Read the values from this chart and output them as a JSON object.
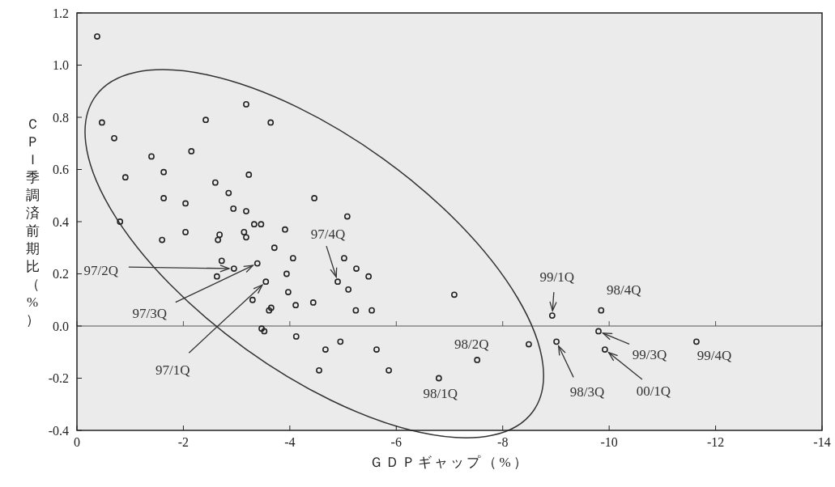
{
  "chart_data": {
    "type": "scatter",
    "xlabel": "ＧＤＰギャップ（%）",
    "ylabel": "ＣＰＩ季調済前期比（%）",
    "xlim": [
      0,
      -14
    ],
    "ylim": [
      -0.4,
      1.2
    ],
    "xticks": [
      0,
      -2,
      -4,
      -6,
      -8,
      -10,
      -12,
      -14
    ],
    "yticks": [
      {
        "value": -0.4,
        "label": "-0.4"
      },
      {
        "value": -0.2,
        "label": "-0.2"
      },
      {
        "value": 0,
        "label": "0.0"
      },
      {
        "value": 0.2,
        "label": "0.2"
      },
      {
        "value": 0.4,
        "label": "0.4"
      },
      {
        "value": 0.6,
        "label": "0.6"
      },
      {
        "value": 0.8,
        "label": "0.8"
      },
      {
        "value": 1,
        "label": "1.0"
      },
      {
        "value": 1.2,
        "label": "1.2"
      }
    ],
    "grid": false,
    "marker": "circle",
    "ref_lines": [
      {
        "axis": "y",
        "value": 0,
        "color": "#555555"
      }
    ],
    "series": [
      {
        "color": "#222222",
        "x": [
          -0.38,
          -0.47,
          -0.7,
          -1.4,
          -2.15,
          -2.42,
          -3.18,
          -3.64,
          -0.91,
          -1.63,
          -3.23,
          -2.6,
          -2.85,
          -1.63,
          -2.04,
          -2.94,
          -3.18,
          -4.46,
          -0.81,
          -3.33,
          -3.46,
          -1.6,
          -2.04,
          -2.68,
          -2.65,
          -3.14,
          -3.18,
          -3.91,
          -3.71,
          -4.06,
          -2.72,
          -2.95,
          -3.39,
          -2.63,
          -3.94,
          -3.55,
          -3.97,
          -3.3,
          -4.11,
          -3.65,
          -3.61,
          -4.44,
          -3.47,
          -3.52,
          -4.12,
          -5.08,
          -5.02,
          -5.25,
          -5.48,
          -4.9,
          -5.1,
          -5.24,
          -5.54,
          -7.09,
          -8.93,
          -4.95,
          -4.67,
          -5.63,
          -4.55,
          -5.86,
          -6.8,
          -7.52,
          -8.49,
          -9.01,
          -9.85,
          -9.8,
          -9.92,
          -11.64
        ],
        "values": [
          1.11,
          0.78,
          0.72,
          0.65,
          0.67,
          0.79,
          0.85,
          0.78,
          0.57,
          0.59,
          0.58,
          0.55,
          0.51,
          0.49,
          0.47,
          0.45,
          0.44,
          0.49,
          0.4,
          0.39,
          0.39,
          0.33,
          0.36,
          0.35,
          0.33,
          0.36,
          0.34,
          0.37,
          0.3,
          0.26,
          0.25,
          0.22,
          0.24,
          0.19,
          0.2,
          0.17,
          0.13,
          0.1,
          0.08,
          0.07,
          0.06,
          0.09,
          -0.01,
          -0.02,
          -0.04,
          0.42,
          0.26,
          0.22,
          0.19,
          0.17,
          0.14,
          0.06,
          0.06,
          0.12,
          0.04,
          -0.06,
          -0.09,
          -0.09,
          -0.17,
          -0.17,
          -0.2,
          -0.13,
          -0.07,
          -0.06,
          0.06,
          -0.02,
          -0.09,
          -0.06
        ]
      }
    ],
    "annotations": [
      {
        "text": "97/2Q",
        "x": -2.95,
        "y": 0.22
      },
      {
        "text": "97/3Q",
        "x": -3.39,
        "y": 0.24
      },
      {
        "text": "97/1Q",
        "x": -3.55,
        "y": 0.17
      },
      {
        "text": "97/4Q",
        "x": -4.9,
        "y": 0.17
      },
      {
        "text": "98/2Q",
        "x": -7.52,
        "y": -0.13
      },
      {
        "text": "98/1Q",
        "x": -6.8,
        "y": -0.2
      },
      {
        "text": "99/1Q",
        "x": -8.93,
        "y": 0.04
      },
      {
        "text": "98/4Q",
        "x": -9.85,
        "y": 0.06
      },
      {
        "text": "99/3Q",
        "x": -9.8,
        "y": -0.02
      },
      {
        "text": "00/1Q",
        "x": -9.92,
        "y": -0.09
      },
      {
        "text": "98/3Q",
        "x": -9.01,
        "y": -0.06
      },
      {
        "text": "99/4Q",
        "x": -11.64,
        "y": -0.06
      }
    ]
  }
}
